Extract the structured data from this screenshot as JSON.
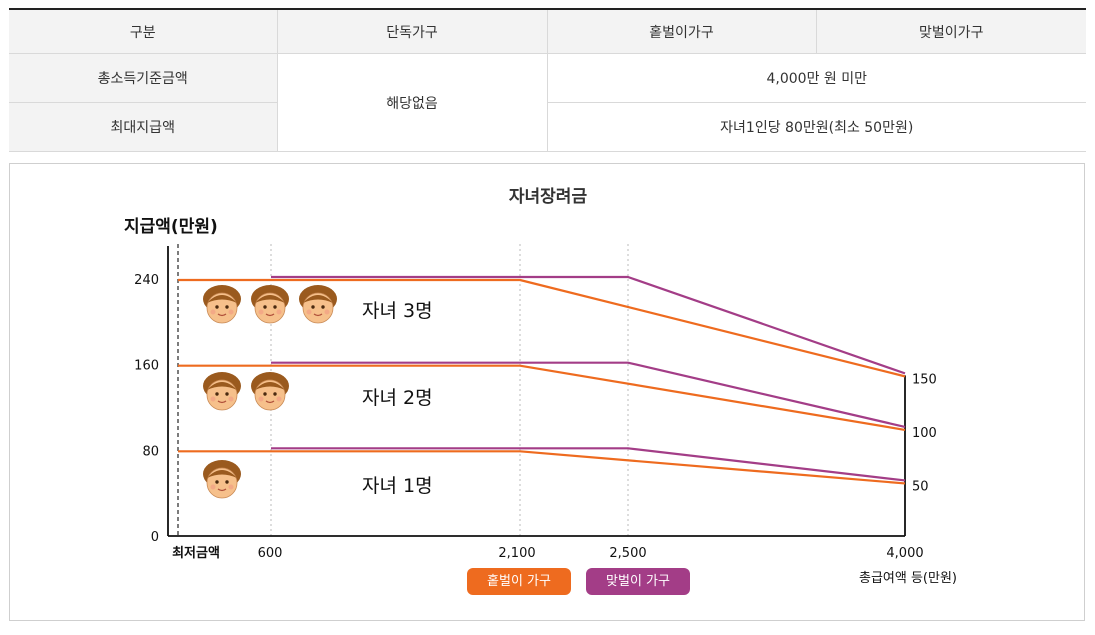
{
  "table": {
    "headers": [
      "구분",
      "단독가구",
      "홑벌이가구",
      "맞벌이가구"
    ],
    "rows": [
      {
        "label": "총소득기준금액",
        "single": "해당없음",
        "merged": "4,000만 원 미만"
      },
      {
        "label": "최대지급액",
        "merged": "자녀1인당 80만원(최소 50만원)"
      }
    ]
  },
  "colors": {
    "single_earner": "#ee6b1f",
    "dual_earner": "#a33d87"
  },
  "chart_data": {
    "type": "line",
    "title": "자녀장려금",
    "ylabel": "지급액(만원)",
    "xlabel": "총급여액 등(만원)",
    "x_ticks": [
      "최저금액",
      "600",
      "2,100",
      "2,500",
      "4,000"
    ],
    "y_ticks": [
      "0",
      "80",
      "160",
      "240"
    ],
    "right_ticks": [
      "150",
      "100",
      "50"
    ],
    "ylim": [
      0,
      240
    ],
    "series": [
      {
        "name": "홑벌이 가구",
        "group": "자녀 3명",
        "points": [
          [
            0,
            240
          ],
          [
            2100,
            240
          ],
          [
            4000,
            150
          ]
        ]
      },
      {
        "name": "맞벌이 가구",
        "group": "자녀 3명",
        "points": [
          [
            600,
            240
          ],
          [
            2500,
            240
          ],
          [
            4000,
            150
          ]
        ]
      },
      {
        "name": "홑벌이 가구",
        "group": "자녀 2명",
        "points": [
          [
            0,
            160
          ],
          [
            2100,
            160
          ],
          [
            4000,
            100
          ]
        ]
      },
      {
        "name": "맞벌이 가구",
        "group": "자녀 2명",
        "points": [
          [
            600,
            160
          ],
          [
            2500,
            160
          ],
          [
            4000,
            100
          ]
        ]
      },
      {
        "name": "홑벌이 가구",
        "group": "자녀 1명",
        "points": [
          [
            0,
            80
          ],
          [
            2100,
            80
          ],
          [
            4000,
            50
          ]
        ]
      },
      {
        "name": "맞벌이 가구",
        "group": "자녀 1명",
        "points": [
          [
            600,
            80
          ],
          [
            2500,
            80
          ],
          [
            4000,
            50
          ]
        ]
      }
    ],
    "group_labels": [
      {
        "text": "자녀 3명",
        "faces": 3
      },
      {
        "text": "자녀 2명",
        "faces": 2
      },
      {
        "text": "자녀 1명",
        "faces": 1
      }
    ],
    "legend": [
      "홑벌이 가구",
      "맞벌이 가구"
    ]
  }
}
